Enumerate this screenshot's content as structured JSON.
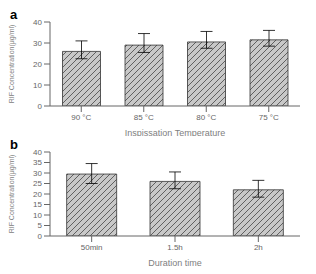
{
  "chart_data": [
    {
      "type": "bar",
      "label": "a",
      "categories": [
        "90 °C",
        "85 °C",
        "80 °C",
        "75 °C"
      ],
      "values": [
        26.0,
        29.0,
        30.5,
        31.5
      ],
      "errors_upper": [
        5.0,
        5.5,
        5.0,
        4.5
      ],
      "errors_lower": [
        3.5,
        3.5,
        3.0,
        3.0
      ],
      "xlabel": "Inspissation Temperature",
      "ylabel": "RIF Concentration(μg/ml)",
      "ylim": [
        0,
        40
      ],
      "yticks": [
        0,
        10,
        20,
        30,
        40
      ],
      "color": "#c8c8c8",
      "grid": false
    },
    {
      "type": "bar",
      "label": "b",
      "categories": [
        "50min",
        "1.5h",
        "2h"
      ],
      "values": [
        29.5,
        26.0,
        22.0
      ],
      "errors_upper": [
        5.0,
        4.5,
        4.5
      ],
      "errors_lower": [
        4.5,
        3.5,
        3.5
      ],
      "xlabel": "Duration time",
      "ylabel": "RIF Concentration(μg/ml)",
      "ylim": [
        0,
        40
      ],
      "yticks": [
        0,
        5,
        10,
        15,
        20,
        25,
        30,
        35,
        40
      ],
      "color": "#c8c8c8",
      "grid": false
    }
  ]
}
